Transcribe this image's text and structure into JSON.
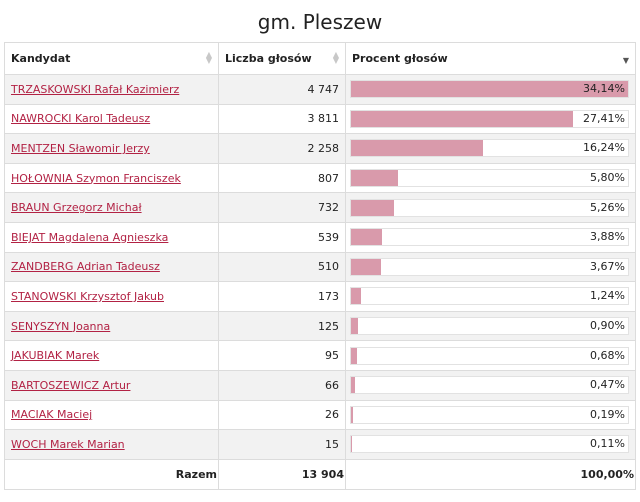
{
  "title": "gm. Pleszew",
  "headers": {
    "candidate": "Kandydat",
    "votes": "Liczba głosów",
    "percent": "Procent głosów"
  },
  "rows": [
    {
      "name": "TRZASKOWSKI Rafał Kazimierz",
      "votes": "4 747",
      "percent_label": "34,14%",
      "percent": 34.14
    },
    {
      "name": "NAWROCKI Karol Tadeusz",
      "votes": "3 811",
      "percent_label": "27,41%",
      "percent": 27.41
    },
    {
      "name": "MENTZEN Sławomir Jerzy",
      "votes": "2 258",
      "percent_label": "16,24%",
      "percent": 16.24
    },
    {
      "name": "HOŁOWNIA Szymon Franciszek",
      "votes": "807",
      "percent_label": "5,80%",
      "percent": 5.8
    },
    {
      "name": "BRAUN Grzegorz Michał",
      "votes": "732",
      "percent_label": "5,26%",
      "percent": 5.26
    },
    {
      "name": "BIEJAT Magdalena Agnieszka",
      "votes": "539",
      "percent_label": "3,88%",
      "percent": 3.88
    },
    {
      "name": "ZANDBERG Adrian Tadeusz",
      "votes": "510",
      "percent_label": "3,67%",
      "percent": 3.67
    },
    {
      "name": "STANOWSKI Krzysztof Jakub",
      "votes": "173",
      "percent_label": "1,24%",
      "percent": 1.24
    },
    {
      "name": "SENYSZYN Joanna",
      "votes": "125",
      "percent_label": "0,90%",
      "percent": 0.9
    },
    {
      "name": "JAKUBIAK Marek",
      "votes": "95",
      "percent_label": "0,68%",
      "percent": 0.68
    },
    {
      "name": "BARTOSZEWICZ Artur",
      "votes": "66",
      "percent_label": "0,47%",
      "percent": 0.47
    },
    {
      "name": "MACIAK Maciej",
      "votes": "26",
      "percent_label": "0,19%",
      "percent": 0.19
    },
    {
      "name": "WOCH Marek Marian",
      "votes": "15",
      "percent_label": "0,11%",
      "percent": 0.11
    }
  ],
  "footer": {
    "label": "Razem",
    "votes": "13 904",
    "percent": "100,00%"
  },
  "colors": {
    "bar": "#d99aab",
    "link": "#b22244"
  },
  "sort": {
    "active_column": "percent",
    "direction": "descending"
  }
}
